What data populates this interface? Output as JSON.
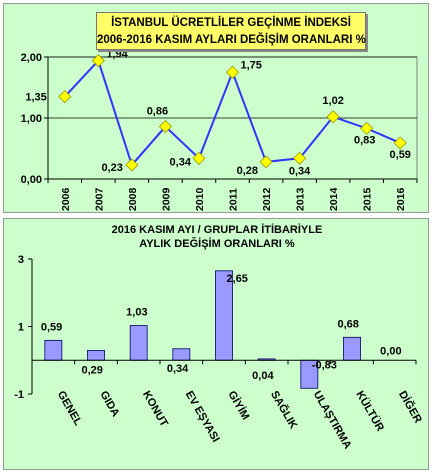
{
  "chart_data": [
    {
      "type": "line",
      "title_lines": [
        "İSTANBUL ÜCRETLİLER GEÇİNME İNDEKSİ",
        "2006-2016 KASIM AYLARI DEĞİŞİM ORANLARI %"
      ],
      "categories": [
        "2006",
        "2007",
        "2008",
        "2009",
        "2010",
        "2011",
        "2012",
        "2013",
        "2014",
        "2015",
        "2016"
      ],
      "values": [
        1.35,
        1.94,
        0.23,
        0.86,
        0.34,
        1.75,
        0.28,
        0.34,
        1.02,
        0.83,
        0.59
      ],
      "value_labels": [
        "1,35",
        "1,94",
        "0,23",
        "0,86",
        "0,34",
        "1,75",
        "0,28",
        "0,34",
        "1,02",
        "0,83",
        "0,59"
      ],
      "ylim": [
        0,
        2
      ],
      "yticks": [
        0,
        1,
        2
      ],
      "ytick_labels": [
        "0,00",
        "1,00",
        "2,00"
      ],
      "grid": true,
      "colors": {
        "line": "#3333ff",
        "marker": "#ffff00",
        "marker_edge": "#999900",
        "plot_bg": "#ccffcc",
        "title_bg": "#ffff66"
      }
    },
    {
      "type": "bar",
      "title_lines": [
        "2016 KASIM AYI / GRUPLAR İTİBARİYLE",
        "AYLIK DEĞİŞİM  ORANLARI  %"
      ],
      "categories": [
        "GENEL",
        "GIDA",
        "KONUT",
        "EV EŞYASI",
        "GİYİM",
        "SAĞLIK",
        "ULAŞTIRMA",
        "KÜLTÜR",
        "DİĞER"
      ],
      "values": [
        0.59,
        0.29,
        1.03,
        0.34,
        2.65,
        0.04,
        -0.83,
        0.68,
        0.0
      ],
      "value_labels": [
        "0,59",
        "0,29",
        "1,03",
        "0,34",
        "2,65",
        "0,04",
        "-0,83",
        "0,68",
        "0,00"
      ],
      "ylim": [
        -1,
        3
      ],
      "yticks": [
        -1,
        1,
        3
      ],
      "ytick_labels": [
        "-1",
        "1",
        "3"
      ],
      "grid": false,
      "colors": {
        "bar": "#9999ff",
        "bar_edge": "#000066",
        "plot_bg": "#ccffcc"
      }
    }
  ]
}
